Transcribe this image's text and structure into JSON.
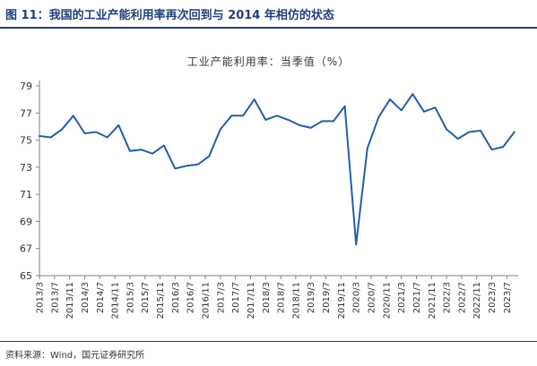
{
  "figure": {
    "title": "图 11：我国的工业产能利用率再次回到与 2014 年相仿的状态",
    "source": "资料来源：Wind，国元证券研究所"
  },
  "colors": {
    "line": "#1f5fae",
    "header": "#1f3f7a",
    "axis": "#808080",
    "text": "#333333"
  },
  "chart_data": {
    "type": "line",
    "title": "工业产能利用率：当季值（%）",
    "xlabel": "",
    "ylabel": "",
    "ylim": [
      65,
      79
    ],
    "yticks": [
      65,
      67,
      69,
      71,
      73,
      75,
      77,
      79
    ],
    "grid": false,
    "x": [
      "2013/3",
      "2013/7",
      "2013/11",
      "2014/3",
      "2014/7",
      "2014/11",
      "2015/3",
      "2015/7",
      "2015/11",
      "2016/3",
      "2016/7",
      "2016/11",
      "2017/3",
      "2017/7",
      "2017/11",
      "2018/3",
      "2018/7",
      "2018/11",
      "2019/3",
      "2019/7",
      "2019/11",
      "2020/3",
      "2020/7",
      "2020/11",
      "2021/3",
      "2021/7",
      "2021/11",
      "2022/3",
      "2022/7",
      "2022/11",
      "2023/3",
      "2023/7"
    ],
    "series": [
      {
        "values": [
          [
            "2013/3",
            75.3
          ],
          [
            "2013/6",
            75.2
          ],
          [
            "2013/9",
            75.8
          ],
          [
            "2013/12",
            76.8
          ],
          [
            "2014/3",
            75.5
          ],
          [
            "2014/6",
            75.6
          ],
          [
            "2014/9",
            75.2
          ],
          [
            "2014/12",
            76.1
          ],
          [
            "2015/3",
            74.2
          ],
          [
            "2015/6",
            74.3
          ],
          [
            "2015/9",
            74.0
          ],
          [
            "2015/12",
            74.6
          ],
          [
            "2016/3",
            72.9
          ],
          [
            "2016/6",
            73.1
          ],
          [
            "2016/9",
            73.2
          ],
          [
            "2016/12",
            73.8
          ],
          [
            "2017/3",
            75.8
          ],
          [
            "2017/6",
            76.8
          ],
          [
            "2017/9",
            76.8
          ],
          [
            "2017/12",
            78.0
          ],
          [
            "2018/3",
            76.5
          ],
          [
            "2018/6",
            76.8
          ],
          [
            "2018/9",
            76.5
          ],
          [
            "2018/12",
            76.1
          ],
          [
            "2019/3",
            75.9
          ],
          [
            "2019/6",
            76.4
          ],
          [
            "2019/9",
            76.4
          ],
          [
            "2019/12",
            77.5
          ],
          [
            "2020/3",
            67.3
          ],
          [
            "2020/6",
            74.4
          ],
          [
            "2020/9",
            76.7
          ],
          [
            "2020/12",
            78.0
          ],
          [
            "2021/3",
            77.2
          ],
          [
            "2021/6",
            78.4
          ],
          [
            "2021/9",
            77.1
          ],
          [
            "2021/12",
            77.4
          ],
          [
            "2022/3",
            75.8
          ],
          [
            "2022/6",
            75.1
          ],
          [
            "2022/9",
            75.6
          ],
          [
            "2022/12",
            75.7
          ],
          [
            "2023/3",
            74.3
          ],
          [
            "2023/6",
            74.5
          ],
          [
            "2023/9",
            75.6
          ]
        ]
      }
    ]
  }
}
